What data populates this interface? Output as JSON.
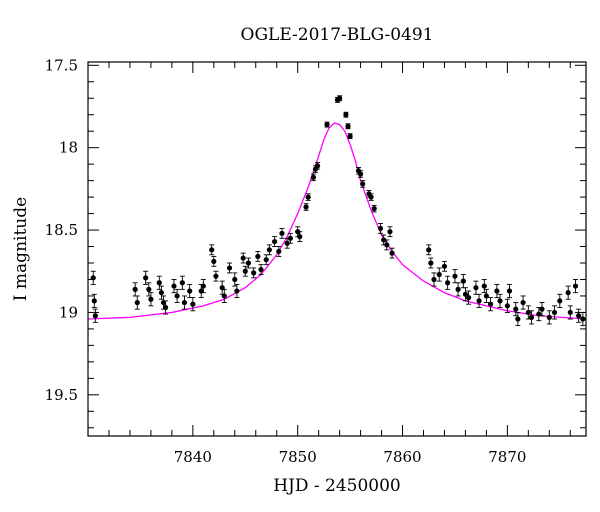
{
  "chart_data": {
    "type": "scatter",
    "title": "OGLE-2017-BLG-0491",
    "xlabel": "HJD - 2450000",
    "ylabel": "I magnitude",
    "xlim": [
      7830,
      7877.5
    ],
    "ylim": [
      19.75,
      17.48
    ],
    "y_inverted": true,
    "x_ticks": [
      7840,
      7850,
      7860,
      7870
    ],
    "x_tick_labels": [
      "7840",
      "7850",
      "7860",
      "7870"
    ],
    "y_ticks": [
      17.5,
      18,
      18.5,
      19,
      19.5
    ],
    "y_tick_labels": [
      "17.5",
      "18",
      "18.5",
      "19",
      "19.5"
    ],
    "grid": false,
    "colors": {
      "data": "#000000",
      "model": "#ff00ff"
    },
    "model": {
      "type": "point-lens fit",
      "x": [
        7830,
        7834,
        7838,
        7841,
        7843,
        7845,
        7846.5,
        7848,
        7849,
        7850,
        7851,
        7852,
        7852.5,
        7853,
        7853.5,
        7854,
        7854.5,
        7855,
        7855.5,
        7856,
        7857,
        7858,
        7859,
        7860,
        7862,
        7864,
        7866,
        7868,
        7870,
        7873,
        7877.5
      ],
      "y": [
        19.04,
        19.03,
        19.0,
        18.96,
        18.92,
        18.85,
        18.77,
        18.65,
        18.54,
        18.4,
        18.24,
        18.05,
        17.95,
        17.88,
        17.85,
        17.86,
        17.9,
        17.98,
        18.08,
        18.2,
        18.38,
        18.53,
        18.63,
        18.71,
        18.81,
        18.88,
        18.93,
        18.96,
        18.99,
        19.02,
        19.04
      ]
    },
    "series": [
      {
        "x": [
          7830.5,
          7830.6,
          7830.7,
          7834.5,
          7834.7,
          7835.5,
          7835.8,
          7836.0,
          7836.8,
          7837.0,
          7837.2,
          7837.4,
          7838.2,
          7838.5,
          7839.0,
          7839.2,
          7839.7,
          7840.0,
          7840.8,
          7841.0,
          7841.8,
          7842.0,
          7842.2,
          7842.8,
          7843.0,
          7843.5,
          7844.0,
          7844.2,
          7844.8,
          7845.0,
          7845.3,
          7845.8,
          7846.2,
          7846.5,
          7847.0,
          7847.3,
          7847.8,
          7848.2,
          7848.5,
          7849.0,
          7849.3,
          7850.0,
          7850.2,
          7850.8,
          7851.0,
          7851.5,
          7851.7,
          7851.9,
          7852.8,
          7853.8,
          7854.0,
          7854.6,
          7854.8,
          7855.0,
          7855.8,
          7856.0,
          7856.2,
          7856.8,
          7857.0,
          7857.3,
          7857.9,
          7858.2,
          7858.5,
          7858.8,
          7859.0,
          7862.5,
          7862.7,
          7863.0,
          7863.5,
          7864.0,
          7864.3,
          7865.0,
          7865.3,
          7865.8,
          7866.0,
          7866.3,
          7867.0,
          7867.3,
          7867.8,
          7868.0,
          7868.4,
          7869.0,
          7869.3,
          7870.0,
          7870.2,
          7870.8,
          7871.0,
          7871.5,
          7872.0,
          7872.3,
          7873.0,
          7873.3,
          7874.0,
          7874.5,
          7875.0,
          7875.8,
          7876.0,
          7876.5,
          7876.8,
          7877.2
        ],
        "y": [
          18.79,
          18.93,
          19.02,
          18.86,
          18.94,
          18.79,
          18.86,
          18.92,
          18.82,
          18.88,
          18.94,
          18.97,
          18.84,
          18.9,
          18.82,
          18.94,
          18.87,
          18.95,
          18.87,
          18.84,
          18.62,
          18.69,
          18.78,
          18.85,
          18.9,
          18.73,
          18.8,
          18.87,
          18.67,
          18.75,
          18.7,
          18.76,
          18.66,
          18.74,
          18.68,
          18.62,
          18.57,
          18.63,
          18.52,
          18.58,
          18.55,
          18.51,
          18.54,
          18.36,
          18.3,
          18.18,
          18.13,
          18.11,
          17.86,
          17.71,
          17.7,
          17.8,
          17.87,
          17.93,
          18.14,
          18.16,
          18.22,
          18.28,
          18.3,
          18.37,
          18.49,
          18.56,
          18.59,
          18.51,
          18.64,
          18.62,
          18.7,
          18.8,
          18.77,
          18.72,
          18.82,
          18.78,
          18.86,
          18.81,
          18.89,
          18.91,
          18.85,
          18.93,
          18.84,
          18.9,
          18.95,
          18.87,
          18.93,
          18.96,
          18.87,
          18.98,
          19.04,
          18.94,
          19.0,
          19.03,
          19.01,
          18.98,
          19.03,
          19.0,
          18.93,
          18.88,
          19.0,
          18.84,
          19.02,
          19.04
        ],
        "err": [
          0.04,
          0.04,
          0.04,
          0.04,
          0.04,
          0.04,
          0.04,
          0.04,
          0.04,
          0.04,
          0.04,
          0.04,
          0.04,
          0.04,
          0.04,
          0.04,
          0.04,
          0.04,
          0.04,
          0.04,
          0.03,
          0.03,
          0.03,
          0.04,
          0.04,
          0.03,
          0.04,
          0.04,
          0.03,
          0.03,
          0.03,
          0.03,
          0.03,
          0.03,
          0.03,
          0.03,
          0.03,
          0.03,
          0.03,
          0.03,
          0.03,
          0.03,
          0.03,
          0.02,
          0.02,
          0.02,
          0.02,
          0.02,
          0.015,
          0.015,
          0.015,
          0.015,
          0.015,
          0.015,
          0.02,
          0.02,
          0.02,
          0.02,
          0.02,
          0.02,
          0.03,
          0.03,
          0.03,
          0.03,
          0.03,
          0.03,
          0.03,
          0.04,
          0.04,
          0.03,
          0.04,
          0.04,
          0.04,
          0.04,
          0.04,
          0.04,
          0.04,
          0.04,
          0.04,
          0.04,
          0.04,
          0.04,
          0.04,
          0.04,
          0.04,
          0.04,
          0.04,
          0.04,
          0.04,
          0.04,
          0.04,
          0.04,
          0.04,
          0.04,
          0.04,
          0.04,
          0.04,
          0.04,
          0.04,
          0.04
        ]
      }
    ]
  }
}
